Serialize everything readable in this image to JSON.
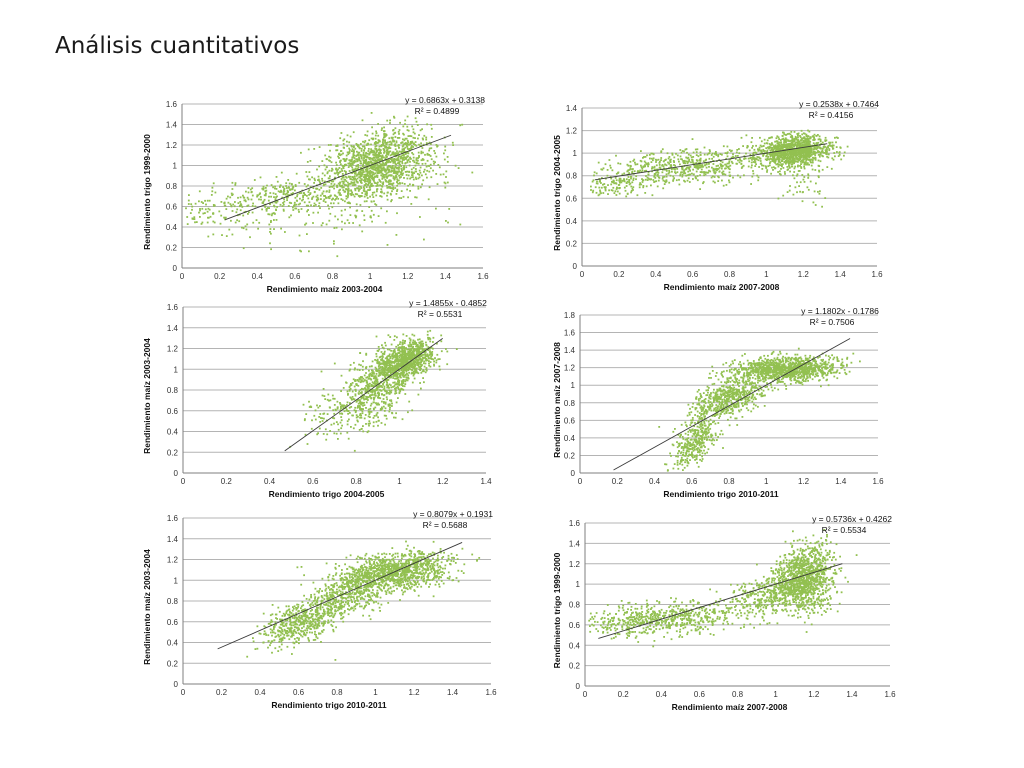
{
  "slide": {
    "title": "Análisis cuantitativos"
  },
  "colors": {
    "point": "#92c050",
    "trend": "#3a3a3a",
    "grid": "#b4b4b4",
    "axis": "#7f7f7f"
  },
  "chart_data": [
    {
      "type": "scatter",
      "xlabel": "Rendimiento maíz 2003-2004",
      "ylabel": "Rendimiento trigo 1999-2000",
      "xlim": [
        0,
        1.6
      ],
      "ylim": [
        0,
        1.6
      ],
      "xticks": [
        "0",
        "0.2",
        "0.4",
        "0.6",
        "0.8",
        "1",
        "1.2",
        "1.4",
        "1.6"
      ],
      "yticks": [
        "0",
        "0.2",
        "0.4",
        "0.6",
        "0.8",
        "1",
        "1.2",
        "1.4",
        "1.6"
      ],
      "equation": "y = 0.6863x + 0.3138",
      "r2": "R² = 0.4899",
      "trend": {
        "slope": 0.6863,
        "intercept": 0.3138,
        "x_range": [
          0.23,
          1.43
        ]
      },
      "grid": "horizontal",
      "cloud": [
        [
          0.3,
          0.6,
          0.48,
          0.12,
          0.1,
          220
        ],
        [
          0.65,
          0.35,
          0.72,
          0.12,
          0.6,
          500
        ],
        [
          1.05,
          0.14,
          1.03,
          0.16,
          0.3,
          1300
        ]
      ]
    },
    {
      "type": "scatter",
      "xlabel": "Rendimiento maíz 2007-2008",
      "ylabel": "Rendimiento trigo 2004-2005",
      "xlim": [
        0,
        1.6
      ],
      "ylim": [
        0,
        1.4
      ],
      "xticks": [
        "0",
        "0.2",
        "0.4",
        "0.6",
        "0.8",
        "1",
        "1.2",
        "1.4",
        "1.6"
      ],
      "yticks": [
        "0",
        "0.2",
        "0.4",
        "0.6",
        "0.8",
        "1",
        "1.2",
        "1.4"
      ],
      "equation": "y = 0.2538x + 0.7464",
      "r2": "R² = 0.4156",
      "trend": {
        "slope": 0.2538,
        "intercept": 0.7464,
        "x_range": [
          0.07,
          1.33
        ]
      },
      "grid": "horizontal",
      "cloud": [
        [
          0.2,
          0.1,
          0.72,
          0.06,
          0.2,
          120
        ],
        [
          0.6,
          0.22,
          0.88,
          0.08,
          0.3,
          600
        ],
        [
          1.15,
          0.1,
          1.02,
          0.07,
          0.2,
          1100
        ],
        [
          1.2,
          0.06,
          0.78,
          0.12,
          0,
          60
        ]
      ]
    },
    {
      "type": "scatter",
      "xlabel": "Rendimiento trigo 2004-2005",
      "ylabel": "Rendimiento maíz 2003-2004",
      "xlim": [
        0,
        1.4
      ],
      "ylim": [
        0,
        1.6
      ],
      "xticks": [
        "0",
        "0.2",
        "0.4",
        "0.6",
        "0.8",
        "1",
        "1.2",
        "1.4"
      ],
      "yticks": [
        "0",
        "0.2",
        "0.4",
        "0.6",
        "0.8",
        "1",
        "1.2",
        "1.4",
        "1.6"
      ],
      "equation": "y = 1.4855x - 0.4852",
      "r2": "R² = 0.5531",
      "trend": {
        "slope": 1.4855,
        "intercept": -0.4852,
        "x_range": [
          0.47,
          1.2
        ]
      },
      "grid": "horizontal",
      "cloud": [
        [
          0.75,
          0.1,
          0.6,
          0.15,
          0.3,
          200
        ],
        [
          0.9,
          0.08,
          0.85,
          0.18,
          0.3,
          500
        ],
        [
          1.03,
          0.07,
          1.08,
          0.1,
          0.4,
          900
        ]
      ]
    },
    {
      "type": "scatter",
      "xlabel": "Rendimiento trigo 2010-2011",
      "ylabel": "Rendimiento maíz 2007-2008",
      "xlim": [
        0,
        1.6
      ],
      "ylim": [
        0,
        1.8
      ],
      "xticks": [
        "0",
        "0.2",
        "0.4",
        "0.6",
        "0.8",
        "1",
        "1.2",
        "1.4",
        "1.6"
      ],
      "yticks": [
        "0",
        "0.2",
        "0.4",
        "0.6",
        "0.8",
        "1",
        "1.2",
        "1.4",
        "1.6",
        "1.8"
      ],
      "equation": "y = 1.1802x - 0.1786",
      "r2": "R² = 0.7506",
      "trend": {
        "slope": 1.1802,
        "intercept": -0.1786,
        "x_range": [
          0.18,
          1.45
        ]
      },
      "grid": "horizontal",
      "cloud": [
        [
          0.62,
          0.06,
          0.35,
          0.15,
          0.6,
          350
        ],
        [
          0.8,
          0.1,
          0.85,
          0.12,
          0.5,
          600
        ],
        [
          1.1,
          0.15,
          1.18,
          0.07,
          0.15,
          1100
        ]
      ]
    },
    {
      "type": "scatter",
      "xlabel": "Rendimiento trigo 2010-2011",
      "ylabel": "Rendimiento maíz 2003-2004",
      "xlim": [
        0,
        1.6
      ],
      "ylim": [
        0,
        1.6
      ],
      "xticks": [
        "0",
        "0.2",
        "0.4",
        "0.6",
        "0.8",
        "1",
        "1.2",
        "1.4",
        "1.6"
      ],
      "yticks": [
        "0",
        "0.2",
        "0.4",
        "0.6",
        "0.8",
        "1",
        "1.2",
        "1.4",
        "1.6"
      ],
      "equation": "y = 0.8079x + 0.1931",
      "r2": "R² = 0.5688",
      "trend": {
        "slope": 0.8079,
        "intercept": 0.1931,
        "x_range": [
          0.18,
          1.45
        ]
      },
      "grid": "horizontal",
      "cloud": [
        [
          0.6,
          0.1,
          0.58,
          0.12,
          0.5,
          450
        ],
        [
          0.85,
          0.12,
          0.85,
          0.12,
          0.5,
          500
        ],
        [
          1.1,
          0.14,
          1.08,
          0.09,
          0.3,
          1100
        ]
      ]
    },
    {
      "type": "scatter",
      "xlabel": "Rendimiento maíz 2007-2008",
      "ylabel": "Rendimiento trigo 1999-2000",
      "xlim": [
        0,
        1.6
      ],
      "ylim": [
        0,
        1.6
      ],
      "xticks": [
        "0",
        "0.2",
        "0.4",
        "0.6",
        "0.8",
        "1",
        "1.2",
        "1.4",
        "1.6"
      ],
      "yticks": [
        "0",
        "0.2",
        "0.4",
        "0.6",
        "0.8",
        "1",
        "1.2",
        "1.4",
        "1.6"
      ],
      "equation": "y = 0.5736x + 0.4262",
      "r2": "R² = 0.5534",
      "trend": {
        "slope": 0.5736,
        "intercept": 0.4262,
        "x_range": [
          0.07,
          1.35
        ]
      },
      "grid": "horizontal",
      "cloud": [
        [
          0.4,
          0.22,
          0.66,
          0.08,
          0.3,
          650
        ],
        [
          0.95,
          0.1,
          0.9,
          0.1,
          0.3,
          300
        ],
        [
          1.15,
          0.08,
          1.05,
          0.17,
          0.2,
          1100
        ]
      ]
    }
  ]
}
